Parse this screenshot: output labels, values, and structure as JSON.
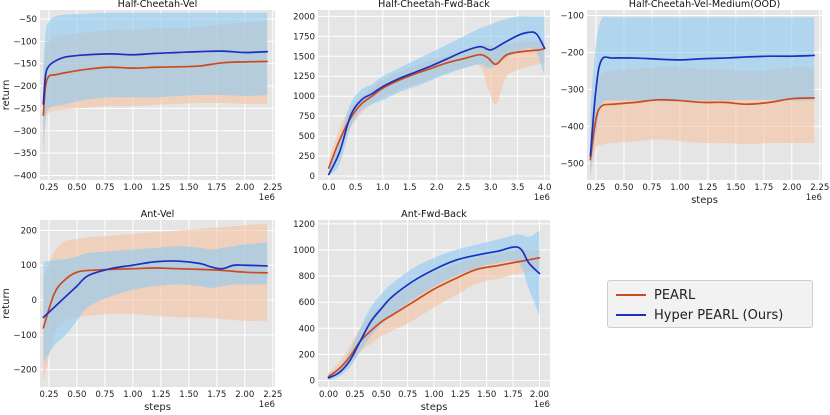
{
  "colors": {
    "pearl": "#cc4a1c",
    "pearl_band": "#f6c4a4",
    "hyper": "#1d2fbf",
    "hyper_band": "#8ec9f2",
    "panel_bg": "#e5e5e5",
    "grid": "#ffffff"
  },
  "legend": {
    "items": [
      {
        "label": "PEARL",
        "color": "#cc4a1c"
      },
      {
        "label": "Hyper PEARL (Ours)",
        "color": "#1d2fbf"
      }
    ]
  },
  "chart_data": [
    {
      "type": "line",
      "title": "Half-Cheetah-Vel",
      "xlabel": "",
      "ylabel": "return",
      "x_offset_label": "1e6",
      "xlim": [
        0.17,
        2.27
      ],
      "ylim": [
        -410,
        -30
      ],
      "xticks": [
        0.25,
        0.5,
        0.75,
        1.0,
        1.25,
        1.5,
        1.75,
        2.0,
        2.25
      ],
      "xtick_labels": [
        "0.25",
        "0.50",
        "0.75",
        "1.00",
        "1.25",
        "1.50",
        "1.75",
        "2.00",
        "2.25"
      ],
      "yticks": [
        -50,
        -100,
        -150,
        -200,
        -250,
        -300,
        -350,
        -400
      ],
      "ytick_labels": [
        "−50",
        "−100",
        "−150",
        "−200",
        "−250",
        "−300",
        "−350",
        "−400"
      ],
      "series": [
        {
          "name": "PEARL",
          "x": [
            0.2,
            0.22,
            0.25,
            0.3,
            0.4,
            0.6,
            0.8,
            1.0,
            1.2,
            1.4,
            1.6,
            1.8,
            2.0,
            2.2
          ],
          "y": [
            -265,
            -200,
            -178,
            -175,
            -170,
            -162,
            -158,
            -160,
            -158,
            -157,
            -155,
            -148,
            -146,
            -145
          ],
          "upper": [
            -200,
            -120,
            -100,
            -90,
            -85,
            -80,
            -75,
            -75,
            -70,
            -70,
            -68,
            -62,
            -58,
            -55
          ],
          "lower": [
            -390,
            -280,
            -260,
            -255,
            -252,
            -248,
            -245,
            -245,
            -242,
            -240,
            -238,
            -238,
            -240,
            -240
          ]
        },
        {
          "name": "Hyper PEARL (Ours)",
          "x": [
            0.2,
            0.22,
            0.25,
            0.3,
            0.4,
            0.6,
            0.8,
            1.0,
            1.2,
            1.4,
            1.6,
            1.8,
            2.0,
            2.2
          ],
          "y": [
            -240,
            -175,
            -155,
            -145,
            -135,
            -130,
            -128,
            -130,
            -127,
            -125,
            -123,
            -122,
            -125,
            -123
          ],
          "upper": [
            -150,
            -80,
            -55,
            -45,
            -40,
            -38,
            -36,
            -36,
            -36,
            -36,
            -36,
            -36,
            -36,
            -36
          ],
          "lower": [
            -340,
            -270,
            -250,
            -245,
            -240,
            -230,
            -225,
            -225,
            -225,
            -222,
            -220,
            -220,
            -222,
            -220
          ]
        }
      ]
    },
    {
      "type": "line",
      "title": "Half-Cheetah-Fwd-Back",
      "xlabel": "",
      "ylabel": "",
      "x_offset_label": "1e6",
      "xlim": [
        -0.2,
        4.1
      ],
      "ylim": [
        -50,
        2080
      ],
      "xticks": [
        0.0,
        0.5,
        1.0,
        1.5,
        2.0,
        2.5,
        3.0,
        3.5,
        4.0
      ],
      "xtick_labels": [
        "0.0",
        "0.5",
        "1.0",
        "1.5",
        "2.0",
        "2.5",
        "3.0",
        "3.5",
        "4.0"
      ],
      "yticks": [
        0,
        250,
        500,
        750,
        1000,
        1250,
        1500,
        1750,
        2000
      ],
      "ytick_labels": [
        "0",
        "250",
        "500",
        "750",
        "1000",
        "1250",
        "1500",
        "1750",
        "2000"
      ],
      "series": [
        {
          "name": "PEARL",
          "x": [
            0.0,
            0.2,
            0.4,
            0.6,
            0.8,
            1.0,
            1.3,
            1.6,
            1.9,
            2.2,
            2.5,
            2.8,
            2.95,
            3.1,
            3.3,
            3.6,
            3.9,
            4.0
          ],
          "y": [
            100,
            450,
            720,
            900,
            1000,
            1100,
            1200,
            1280,
            1350,
            1420,
            1470,
            1520,
            1480,
            1400,
            1520,
            1560,
            1580,
            1600
          ],
          "upper": [
            200,
            600,
            850,
            1000,
            1100,
            1200,
            1300,
            1380,
            1450,
            1520,
            1580,
            1640,
            1650,
            1620,
            1650,
            1680,
            1700,
            1700
          ],
          "lower": [
            0,
            300,
            600,
            780,
            900,
            980,
            1080,
            1150,
            1220,
            1300,
            1350,
            1380,
            1100,
            900,
            1250,
            1350,
            1400,
            1420
          ]
        },
        {
          "name": "Hyper PEARL (Ours)",
          "x": [
            0.0,
            0.2,
            0.4,
            0.6,
            0.8,
            1.0,
            1.3,
            1.6,
            1.9,
            2.2,
            2.5,
            2.8,
            3.0,
            3.2,
            3.5,
            3.7,
            3.85,
            4.0
          ],
          "y": [
            20,
            300,
            750,
            950,
            1030,
            1120,
            1220,
            1300,
            1380,
            1470,
            1560,
            1620,
            1580,
            1650,
            1760,
            1800,
            1780,
            1600
          ],
          "upper": [
            100,
            450,
            900,
            1080,
            1150,
            1250,
            1350,
            1450,
            1550,
            1650,
            1750,
            1850,
            1900,
            1950,
            2000,
            2000,
            2000,
            2000
          ],
          "lower": [
            0,
            150,
            600,
            820,
            900,
            950,
            1050,
            1120,
            1200,
            1280,
            1350,
            1400,
            1350,
            1450,
            1550,
            1600,
            1550,
            1250
          ]
        }
      ]
    },
    {
      "type": "line",
      "title": "Half-Cheetah-Vel-Medium(OOD)",
      "xlabel": "steps",
      "ylabel": "",
      "x_offset_label": "1e6",
      "xlim": [
        0.17,
        2.27
      ],
      "ylim": [
        -545,
        -85
      ],
      "xticks": [
        0.25,
        0.5,
        0.75,
        1.0,
        1.25,
        1.5,
        1.75,
        2.0,
        2.25
      ],
      "xtick_labels": [
        "0.25",
        "0.50",
        "0.75",
        "1.00",
        "1.25",
        "1.50",
        "1.75",
        "2.00",
        "2.25"
      ],
      "yticks": [
        -100,
        -200,
        -300,
        -400,
        -500
      ],
      "ytick_labels": [
        "−100",
        "−200",
        "−300",
        "−400",
        "−500"
      ],
      "series": [
        {
          "name": "PEARL",
          "x": [
            0.2,
            0.25,
            0.3,
            0.4,
            0.6,
            0.8,
            1.0,
            1.2,
            1.4,
            1.6,
            1.8,
            2.0,
            2.2
          ],
          "y": [
            -490,
            -380,
            -345,
            -340,
            -335,
            -328,
            -330,
            -335,
            -335,
            -340,
            -335,
            -325,
            -323
          ],
          "upper": [
            -400,
            -300,
            -260,
            -250,
            -245,
            -240,
            -240,
            -245,
            -245,
            -250,
            -248,
            -240,
            -240
          ],
          "lower": [
            -540,
            -460,
            -450,
            -445,
            -440,
            -435,
            -440,
            -445,
            -445,
            -448,
            -445,
            -445,
            -445
          ]
        },
        {
          "name": "Hyper PEARL (Ours)",
          "x": [
            0.2,
            0.25,
            0.3,
            0.4,
            0.6,
            0.8,
            1.0,
            1.2,
            1.4,
            1.6,
            1.8,
            2.0,
            2.2
          ],
          "y": [
            -480,
            -300,
            -220,
            -215,
            -215,
            -218,
            -220,
            -217,
            -215,
            -212,
            -210,
            -210,
            -208
          ],
          "upper": [
            -350,
            -180,
            -110,
            -105,
            -105,
            -105,
            -105,
            -105,
            -105,
            -105,
            -105,
            -105,
            -105
          ],
          "lower": [
            -530,
            -420,
            -340,
            -330,
            -330,
            -332,
            -332,
            -330,
            -330,
            -328,
            -328,
            -330,
            -330
          ]
        }
      ]
    },
    {
      "type": "line",
      "title": "Ant-Vel",
      "xlabel": "steps",
      "ylabel": "return",
      "x_offset_label": "1e6",
      "xlim": [
        0.17,
        2.27
      ],
      "ylim": [
        -250,
        230
      ],
      "xticks": [
        0.25,
        0.5,
        0.75,
        1.0,
        1.25,
        1.5,
        1.75,
        2.0,
        2.25
      ],
      "xtick_labels": [
        "0.25",
        "0.50",
        "0.75",
        "1.00",
        "1.25",
        "1.50",
        "1.75",
        "2.00",
        "2.25"
      ],
      "yticks": [
        200,
        100,
        0,
        -100,
        -200
      ],
      "ytick_labels": [
        "200",
        "100",
        "0",
        "−100",
        "−200"
      ],
      "series": [
        {
          "name": "PEARL",
          "x": [
            0.2,
            0.3,
            0.4,
            0.5,
            0.6,
            0.8,
            1.0,
            1.2,
            1.4,
            1.6,
            1.8,
            2.0,
            2.2
          ],
          "y": [
            -80,
            20,
            60,
            80,
            85,
            88,
            90,
            92,
            90,
            88,
            85,
            80,
            78
          ],
          "upper": [
            60,
            140,
            170,
            175,
            180,
            185,
            190,
            195,
            200,
            205,
            210,
            215,
            220
          ],
          "lower": [
            -240,
            -100,
            -60,
            -50,
            -45,
            -40,
            -40,
            -45,
            -50,
            -50,
            -55,
            -60,
            -60
          ]
        },
        {
          "name": "Hyper PEARL (Ours)",
          "x": [
            0.2,
            0.3,
            0.4,
            0.5,
            0.6,
            0.8,
            1.0,
            1.2,
            1.4,
            1.6,
            1.7,
            1.8,
            1.9,
            2.0,
            2.2
          ],
          "y": [
            -50,
            -20,
            10,
            40,
            70,
            90,
            100,
            110,
            112,
            105,
            95,
            90,
            100,
            100,
            98
          ],
          "upper": [
            110,
            115,
            118,
            125,
            135,
            140,
            145,
            150,
            155,
            150,
            145,
            150,
            155,
            160,
            165
          ],
          "lower": [
            -180,
            -130,
            -100,
            -60,
            -20,
            10,
            30,
            40,
            45,
            40,
            35,
            40,
            45,
            45,
            45
          ]
        }
      ]
    },
    {
      "type": "line",
      "title": "Ant-Fwd-Back",
      "xlabel": "steps",
      "ylabel": "",
      "x_offset_label": "1e6",
      "xlim": [
        -0.1,
        2.1
      ],
      "ylim": [
        -50,
        1230
      ],
      "xticks": [
        0.0,
        0.25,
        0.5,
        0.75,
        1.0,
        1.25,
        1.5,
        1.75,
        2.0
      ],
      "xtick_labels": [
        "0.00",
        "0.25",
        "0.50",
        "0.75",
        "1.00",
        "1.25",
        "1.50",
        "1.75",
        "2.00"
      ],
      "yticks": [
        0,
        200,
        400,
        600,
        800,
        1000,
        1200
      ],
      "ytick_labels": [
        "0",
        "200",
        "400",
        "600",
        "800",
        "1000",
        "1200"
      ],
      "series": [
        {
          "name": "PEARL",
          "x": [
            0.0,
            0.1,
            0.2,
            0.3,
            0.4,
            0.5,
            0.6,
            0.8,
            1.0,
            1.2,
            1.4,
            1.6,
            1.8,
            2.0
          ],
          "y": [
            30,
            90,
            180,
            300,
            380,
            450,
            500,
            600,
            700,
            780,
            850,
            880,
            910,
            940
          ],
          "upper": [
            60,
            140,
            260,
            400,
            500,
            580,
            640,
            740,
            830,
            890,
            940,
            970,
            1000,
            1000
          ],
          "lower": [
            0,
            50,
            120,
            220,
            280,
            340,
            380,
            460,
            560,
            650,
            740,
            780,
            820,
            850
          ]
        },
        {
          "name": "Hyper PEARL (Ours)",
          "x": [
            0.0,
            0.1,
            0.2,
            0.3,
            0.4,
            0.5,
            0.6,
            0.8,
            1.0,
            1.2,
            1.4,
            1.6,
            1.8,
            1.9,
            2.0
          ],
          "y": [
            20,
            60,
            150,
            300,
            450,
            550,
            640,
            760,
            850,
            920,
            960,
            990,
            1020,
            900,
            820
          ],
          "upper": [
            50,
            100,
            220,
            400,
            560,
            660,
            740,
            860,
            940,
            1000,
            1040,
            1080,
            1120,
            1100,
            1150
          ],
          "lower": [
            0,
            30,
            100,
            220,
            340,
            430,
            500,
            620,
            720,
            800,
            860,
            900,
            900,
            700,
            500
          ]
        }
      ]
    }
  ]
}
